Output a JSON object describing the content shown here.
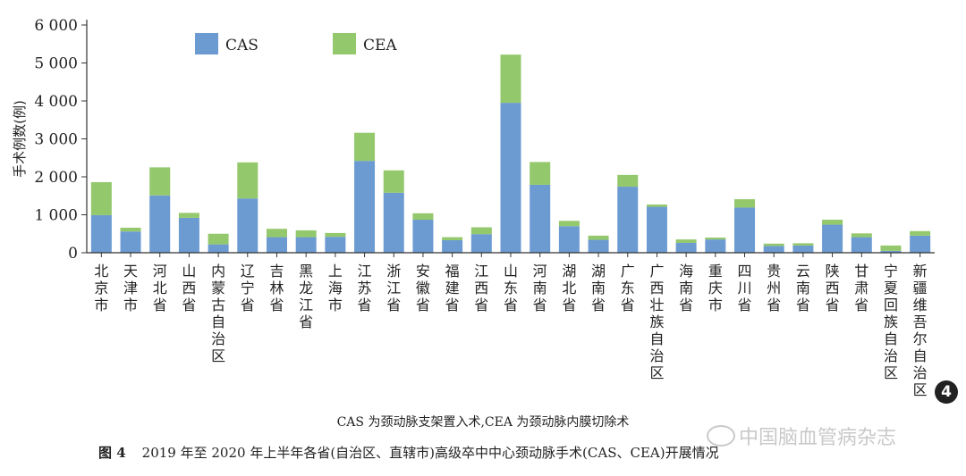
{
  "chart_data": {
    "type": "bar",
    "stacked": true,
    "ylabel": "手术例数(例)",
    "ylim": [
      0,
      6000
    ],
    "yticks": [
      0,
      1000,
      2000,
      3000,
      4000,
      5000,
      6000
    ],
    "ytick_labels": [
      "0",
      "1 000",
      "2 000",
      "3 000",
      "4 000",
      "5 000",
      "6 000"
    ],
    "categories": [
      "北京市",
      "天津市",
      "河北省",
      "山西省",
      "内蒙古自治区",
      "辽宁省",
      "吉林省",
      "黑龙江省",
      "上海市",
      "江苏省",
      "浙江省",
      "安徽省",
      "福建省",
      "江西省",
      "山东省",
      "河南省",
      "湖北省",
      "湖南省",
      "广东省",
      "广西壮族自治区",
      "海南省",
      "重庆市",
      "四川省",
      "贵州省",
      "云南省",
      "陕西省",
      "甘肃省",
      "宁夏回族自治区",
      "新疆维吾尔自治区"
    ],
    "series": [
      {
        "name": "CAS",
        "color": "#6c9bd2",
        "values": [
          990,
          560,
          1510,
          920,
          220,
          1430,
          410,
          410,
          420,
          2420,
          1580,
          870,
          330,
          490,
          3950,
          1790,
          700,
          340,
          1740,
          1210,
          260,
          350,
          1190,
          180,
          190,
          740,
          410,
          50,
          450
        ]
      },
      {
        "name": "CEA",
        "color": "#94c86c",
        "values": [
          870,
          100,
          740,
          130,
          280,
          950,
          220,
          180,
          100,
          740,
          590,
          170,
          80,
          180,
          1270,
          600,
          140,
          110,
          310,
          60,
          90,
          50,
          220,
          60,
          60,
          130,
          100,
          140,
          120
        ]
      }
    ],
    "legend": [
      "CAS",
      "CEA"
    ],
    "legend_position": "top-left",
    "grid": false
  },
  "note": "CAS 为颈动脉支架置入术,CEA 为颈动脉内膜切除术",
  "caption": {
    "figure_number": "图 4",
    "text": "2019 年至 2020 年上半年各省(自治区、直辖市)高级卒中中心颈动脉手术(CAS、CEA)开展情况"
  },
  "watermark": "中国脑血管病杂志",
  "badge": "4"
}
